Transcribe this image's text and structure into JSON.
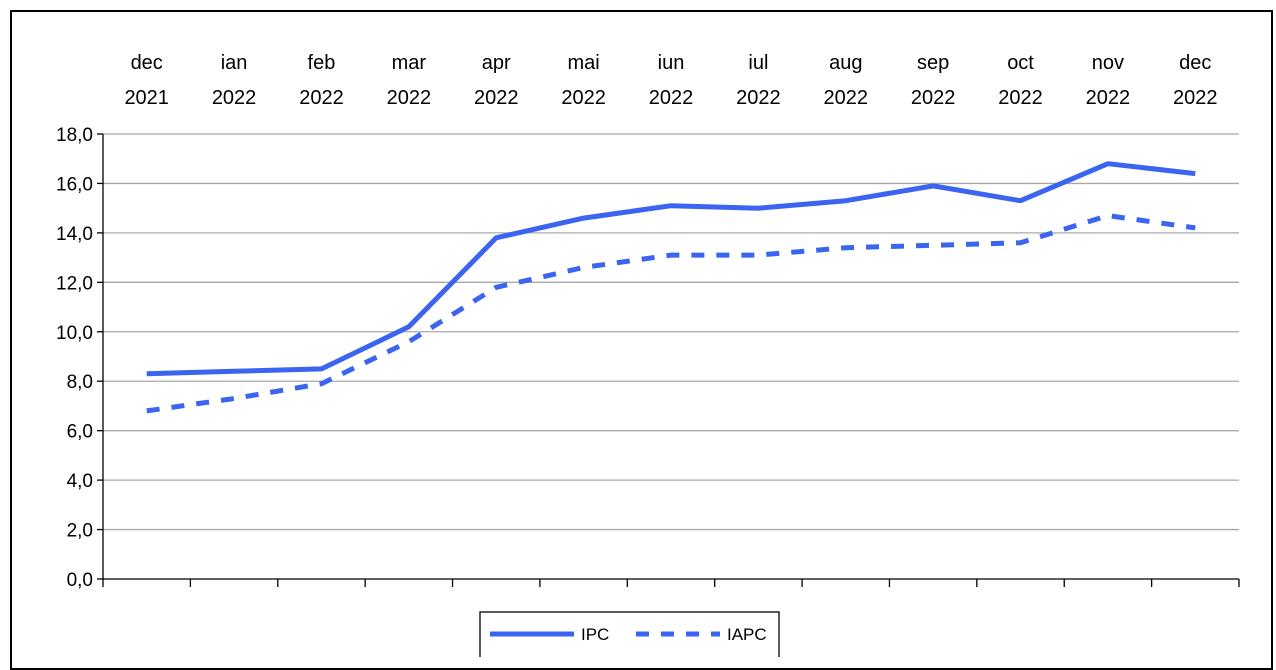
{
  "chart_data": {
    "type": "line",
    "categories": [
      [
        "dec",
        "2021"
      ],
      [
        "ian",
        "2022"
      ],
      [
        "feb",
        "2022"
      ],
      [
        "mar",
        "2022"
      ],
      [
        "apr",
        "2022"
      ],
      [
        "mai",
        "2022"
      ],
      [
        "iun",
        "2022"
      ],
      [
        "iul",
        "2022"
      ],
      [
        "aug",
        "2022"
      ],
      [
        "sep",
        "2022"
      ],
      [
        "oct",
        "2022"
      ],
      [
        "nov",
        "2022"
      ],
      [
        "dec",
        "2022"
      ]
    ],
    "y_ticks": [
      "0,0",
      "2,0",
      "4,0",
      "6,0",
      "8,0",
      "10,0",
      "12,0",
      "14,0",
      "16,0",
      "18,0"
    ],
    "ylim": [
      0,
      18
    ],
    "grid": true,
    "legend_position": "bottom",
    "series": [
      {
        "name": "IPC",
        "style": "solid",
        "color": "#3b64f0",
        "values": [
          8.3,
          8.4,
          8.5,
          10.2,
          13.8,
          14.6,
          15.1,
          15.0,
          15.3,
          15.9,
          15.3,
          16.8,
          16.4
        ]
      },
      {
        "name": "IAPC",
        "style": "dashed",
        "color": "#3b64f0",
        "values": [
          6.8,
          7.3,
          7.9,
          9.6,
          11.8,
          12.6,
          13.1,
          13.1,
          13.4,
          13.5,
          13.6,
          14.7,
          14.2
        ]
      }
    ]
  }
}
